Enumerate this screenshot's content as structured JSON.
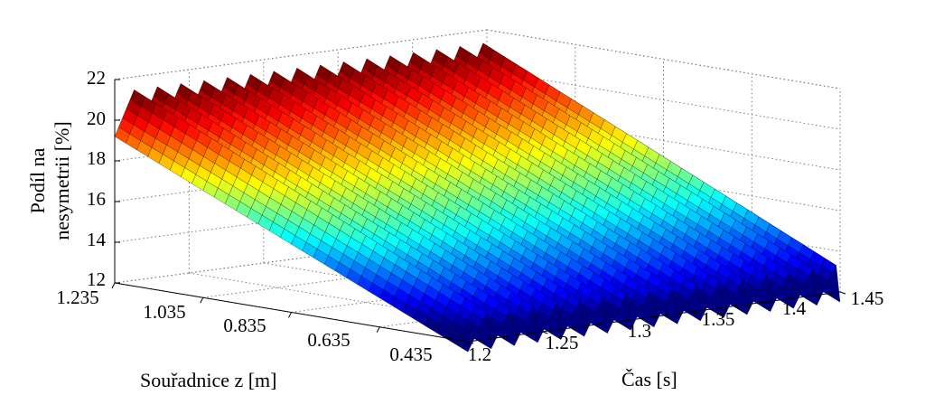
{
  "chart_data": {
    "type": "surface",
    "title": "",
    "xlabel": "Souřadnice z [m]",
    "ylabel": "Čas [s]",
    "zlabel_lines": [
      "Podíl na",
      "nesymetrii [%]"
    ],
    "x_ticks": [
      "1.235",
      "1.035",
      "0.835",
      "0.635",
      "0.435"
    ],
    "x_tick_values": [
      1.235,
      1.035,
      0.835,
      0.635,
      0.435
    ],
    "xlim": [
      0.435,
      1.235
    ],
    "y_ticks": [
      "1.2",
      "1.25",
      "1.3",
      "1.35",
      "1.4",
      "1.45"
    ],
    "y_tick_values": [
      1.2,
      1.25,
      1.3,
      1.35,
      1.4,
      1.45
    ],
    "ylim": [
      1.2,
      1.45
    ],
    "z_ticks": [
      "12",
      "14",
      "16",
      "18",
      "20",
      "22"
    ],
    "z_tick_values": [
      12,
      14,
      16,
      18,
      20,
      22
    ],
    "zlim": [
      12,
      22
    ],
    "grid": true,
    "colormap": "jet",
    "surface": {
      "z_at_x_start": 20.5,
      "z_at_x_end": 12.8,
      "sawtooth_amplitude": 1.3,
      "sawtooth_periods": 16
    }
  }
}
